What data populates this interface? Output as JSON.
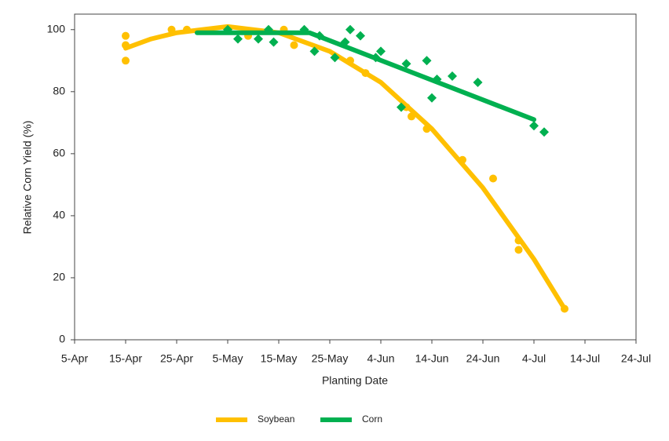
{
  "chart_data": {
    "type": "scatter",
    "xlabel": "Planting Date",
    "ylabel": "Relative Corn Yield (%)",
    "xlim": [
      95,
      205
    ],
    "xticks": [
      {
        "value": 95,
        "label": "5-Apr"
      },
      {
        "value": 105,
        "label": "15-Apr"
      },
      {
        "value": 115,
        "label": "25-Apr"
      },
      {
        "value": 125,
        "label": "5-May"
      },
      {
        "value": 135,
        "label": "15-May"
      },
      {
        "value": 145,
        "label": "25-May"
      },
      {
        "value": 155,
        "label": "4-Jun"
      },
      {
        "value": 165,
        "label": "14-Jun"
      },
      {
        "value": 175,
        "label": "24-Jun"
      },
      {
        "value": 185,
        "label": "4-Jul"
      },
      {
        "value": 195,
        "label": "14-Jul"
      },
      {
        "value": 205,
        "label": "24-Jul"
      }
    ],
    "ylim": [
      0,
      105
    ],
    "yticks": [
      0,
      20,
      40,
      60,
      80,
      100
    ],
    "legend": "bottom",
    "series": [
      {
        "name": "Soybean",
        "color": "#ffc000",
        "marker": "circle",
        "x": [
          105,
          105,
          105,
          114,
          117,
          129,
          136,
          138,
          149,
          152,
          160,
          161,
          164,
          171,
          177,
          182,
          182,
          191
        ],
        "values": [
          98,
          95,
          90,
          100,
          100,
          98,
          100,
          95,
          90,
          86,
          75,
          72,
          68,
          58,
          52,
          32,
          29,
          10
        ],
        "fit": {
          "x": [
            105,
            110,
            115,
            125,
            135,
            145,
            155,
            165,
            175,
            185,
            191
          ],
          "values": [
            94,
            97,
            99,
            101,
            99,
            93,
            83,
            68,
            49,
            26,
            10
          ]
        }
      },
      {
        "name": "Corn",
        "color": "#00b050",
        "marker": "diamond",
        "x": [
          125,
          127,
          131,
          133,
          134,
          140,
          142,
          143,
          146,
          148,
          149,
          151,
          154,
          155,
          159,
          160,
          164,
          165,
          166,
          169,
          174,
          185,
          187
        ],
        "values": [
          100,
          97,
          97,
          100,
          96,
          100,
          93,
          98,
          91,
          96,
          100,
          98,
          91,
          93,
          75,
          89,
          90,
          78,
          84,
          85,
          83,
          69,
          67
        ],
        "fit": {
          "x": [
            119,
            141,
            185
          ],
          "values": [
            99,
            99,
            71
          ]
        }
      }
    ]
  }
}
